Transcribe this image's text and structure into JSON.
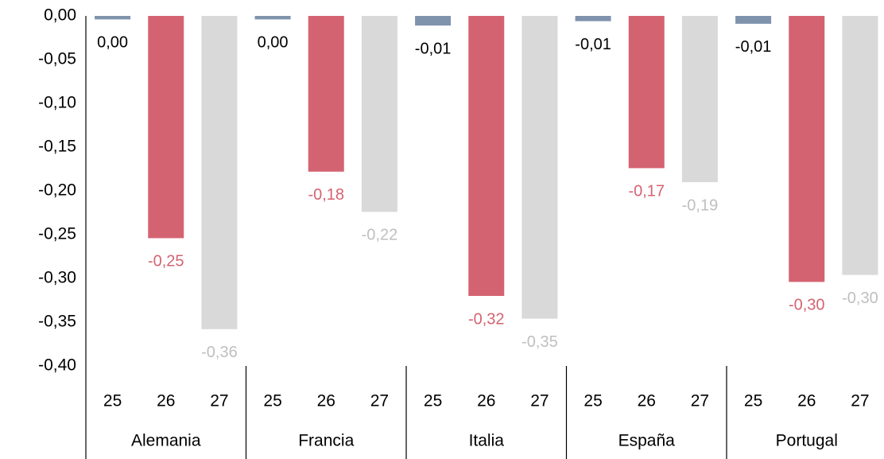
{
  "chart_data": {
    "type": "bar",
    "categories": [
      "Alemania",
      "Francia",
      "Italia",
      "España",
      "Portugal"
    ],
    "series": [
      {
        "name": "25",
        "color": "#7f93ad",
        "label_color": "#000000",
        "values": [
          -0.004,
          -0.004,
          -0.011,
          -0.006,
          -0.009
        ],
        "value_labels": [
          "0,00",
          "0,00",
          "-0,01",
          "-0,01",
          "-0,01"
        ]
      },
      {
        "name": "26",
        "color": "#d46371",
        "label_color": "#d46371",
        "values": [
          -0.254,
          -0.178,
          -0.32,
          -0.174,
          -0.304
        ],
        "value_labels": [
          "-0,25",
          "-0,18",
          "-0,32",
          "-0,17",
          "-0,30"
        ]
      },
      {
        "name": "27",
        "color": "#d9d9d9",
        "label_color": "#bfbfbf",
        "values": [
          -0.358,
          -0.224,
          -0.346,
          -0.19,
          -0.296
        ],
        "value_labels": [
          "-0,36",
          "-0,22",
          "-0,35",
          "-0,19",
          "-0,30"
        ]
      }
    ],
    "ylim": [
      -0.4,
      0
    ],
    "yticks": [
      {
        "value": 0,
        "label": "0,00"
      },
      {
        "value": -0.05,
        "label": "-0,05"
      },
      {
        "value": -0.1,
        "label": "-0,10"
      },
      {
        "value": -0.15,
        "label": "-0,15"
      },
      {
        "value": -0.2,
        "label": "-0,20"
      },
      {
        "value": -0.25,
        "label": "-0,25"
      },
      {
        "value": -0.3,
        "label": "-0,30"
      },
      {
        "value": -0.35,
        "label": "-0,35"
      },
      {
        "value": -0.4,
        "label": "-0,40"
      }
    ],
    "grid": false
  }
}
